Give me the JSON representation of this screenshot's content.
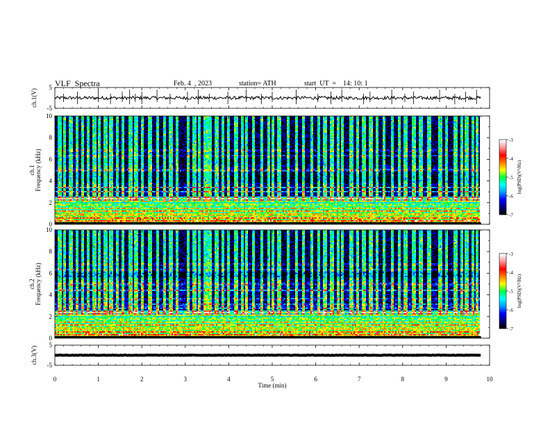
{
  "header": {
    "title": "VLF  Spectra",
    "date": "Feb. 4  , 2023",
    "station": "station= ATH",
    "start": "start  UT  =    14: 10: 1"
  },
  "chart_data": {
    "type": "heatmap",
    "x_axis": {
      "label": "Time  (min)",
      "range": [
        0,
        10
      ],
      "ticks": [
        "0",
        "1",
        "2",
        "3",
        "4",
        "5",
        "6",
        "7",
        "8",
        "9",
        "10"
      ],
      "data_end": 9.8
    },
    "panels": [
      {
        "kind": "timeseries",
        "ylabel": "ch.1(V)",
        "ylim": [
          -5,
          5
        ],
        "ticks": [
          "5",
          "-5"
        ],
        "waveform": {
          "baseline": 0,
          "noise_amplitude": 0.8,
          "spike_times_min": [
            0.2,
            0.52,
            1.0,
            1.28,
            1.55,
            1.72,
            1.85,
            2.0,
            2.35,
            2.65,
            3.05,
            3.3,
            3.55,
            3.98,
            4.4,
            4.75,
            5.0,
            5.55,
            6.05,
            6.35,
            6.6,
            7.1,
            7.25,
            7.75,
            8.05,
            8.25,
            8.85,
            9.2,
            9.45,
            9.7
          ]
        }
      },
      {
        "kind": "spectrogram",
        "ylabel": "Frequency  (kHz)",
        "channel_label": "ch.1",
        "ylim": [
          0,
          10
        ],
        "ticks": [
          "0",
          "2",
          "4",
          "6",
          "8",
          "10"
        ],
        "strong_bands_khz": [
          0.3,
          0.6,
          0.9,
          1.2,
          1.5,
          1.8,
          2.1,
          2.4,
          3.0,
          3.4,
          5.0,
          6.3,
          6.8
        ],
        "noise_floor_band_khz": [
          3.8,
          4.9
        ],
        "sferic_times_min": [
          0.1,
          0.2,
          0.35,
          0.5,
          0.62,
          0.75,
          0.9,
          1.0,
          1.15,
          1.28,
          1.42,
          1.55,
          1.72,
          1.85,
          2.0,
          2.18,
          2.35,
          2.5,
          2.65,
          2.8,
          3.05,
          3.2,
          3.3,
          3.45,
          3.55,
          3.7,
          3.85,
          3.98,
          4.15,
          4.3,
          4.4,
          4.55,
          4.75,
          4.9,
          5.0,
          5.15,
          5.35,
          5.55,
          5.7,
          5.9,
          6.05,
          6.2,
          6.35,
          6.5,
          6.6,
          6.8,
          6.95,
          7.1,
          7.25,
          7.4,
          7.55,
          7.75,
          7.9,
          8.05,
          8.25,
          8.4,
          8.6,
          8.85,
          9.0,
          9.2,
          9.35,
          9.45,
          9.6,
          9.7
        ]
      },
      {
        "kind": "spectrogram",
        "ylabel": "Frequency  (kHz)",
        "channel_label": "ch.2",
        "ylim": [
          0,
          10
        ],
        "ticks": [
          "0",
          "2",
          "4",
          "6",
          "8",
          "10"
        ],
        "strong_bands_khz": [
          0.3,
          0.6,
          0.9,
          1.2,
          1.5,
          1.8,
          2.1,
          2.4,
          2.8,
          3.1,
          3.6,
          4.4,
          5.0,
          6.3,
          6.8
        ],
        "noise_floor_band_khz": [
          5.6,
          6.2
        ],
        "sferic_times_min": [
          0.1,
          0.2,
          0.35,
          0.5,
          0.62,
          0.75,
          0.9,
          1.0,
          1.15,
          1.28,
          1.42,
          1.55,
          1.72,
          1.85,
          2.0,
          2.18,
          2.35,
          2.5,
          2.65,
          2.8,
          3.05,
          3.2,
          3.3,
          3.45,
          3.55,
          3.7,
          3.85,
          3.98,
          4.15,
          4.3,
          4.4,
          4.55,
          4.75,
          4.9,
          5.0,
          5.15,
          5.35,
          5.55,
          5.7,
          5.9,
          6.05,
          6.2,
          6.35,
          6.5,
          6.6,
          6.8,
          6.95,
          7.1,
          7.25,
          7.4,
          7.55,
          7.75,
          7.9,
          8.05,
          8.25,
          8.4,
          8.6,
          8.85,
          9.0,
          9.2,
          9.35,
          9.45,
          9.6,
          9.7
        ]
      },
      {
        "kind": "timeseries",
        "ylabel": "ch.3(V)",
        "ylim": [
          -5,
          5
        ],
        "ticks": [
          "5",
          "-5"
        ],
        "waveform": {
          "baseline": 0,
          "noise_amplitude": 0.1,
          "spike_times_min": []
        }
      }
    ],
    "colorbar": {
      "label": "log(PSD)(V²/Hz)",
      "range": [
        -7,
        -3
      ],
      "ticks": [
        "-3",
        "-4",
        "-5",
        "-6",
        "-7"
      ],
      "colormap": [
        "#000000",
        "#000080",
        "#0000ff",
        "#00a0ff",
        "#00ffff",
        "#00ff40",
        "#ffff00",
        "#ff8000",
        "#ff0000",
        "#ff9090",
        "#ffffff"
      ]
    }
  }
}
